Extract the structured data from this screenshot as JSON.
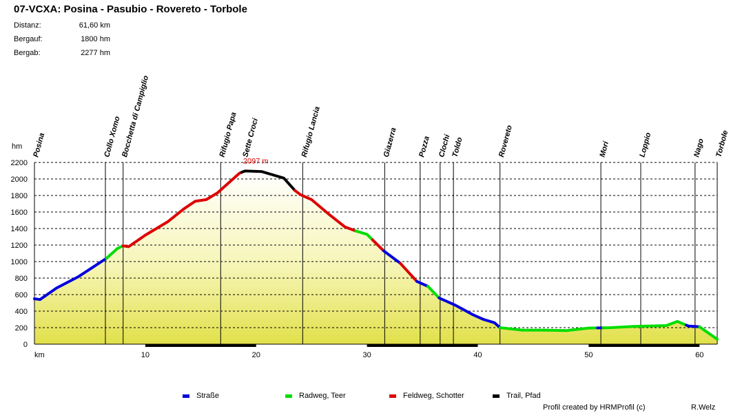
{
  "header": {
    "title": "07-VCXA: Posina - Pasubio - Rovereto - Torbole",
    "stats": [
      {
        "label": "Distanz:",
        "value": "61,60 km"
      },
      {
        "label": "Bergauf:",
        "value": "1800 hm"
      },
      {
        "label": "Bergab:",
        "value": "2277 hm"
      }
    ]
  },
  "colors": {
    "strasse": "#0000dd",
    "radweg": "#00dd00",
    "feldweg": "#dd0000",
    "trail": "#000000"
  },
  "chart_data": {
    "type": "area",
    "title": "07-VCXA: Posina - Pasubio - Rovereto - Torbole",
    "xlabel": "km",
    "ylabel": "hm",
    "xlim": [
      0,
      61.6
    ],
    "ylim": [
      0,
      2200
    ],
    "xticks": [
      10,
      20,
      30,
      40,
      50,
      60
    ],
    "yticks": [
      0,
      200,
      400,
      600,
      800,
      1000,
      1200,
      1400,
      1600,
      1800,
      2000,
      2200
    ],
    "grid": "dashed horizontal",
    "max_label": "2097 m",
    "max_point": {
      "x": 18.7,
      "y": 2097
    },
    "profile": [
      {
        "x": 0,
        "y": 550
      },
      {
        "x": 0.5,
        "y": 540
      },
      {
        "x": 2,
        "y": 680
      },
      {
        "x": 4,
        "y": 820
      },
      {
        "x": 6.5,
        "y": 1040
      },
      {
        "x": 7.5,
        "y": 1160
      },
      {
        "x": 8,
        "y": 1190
      },
      {
        "x": 8.5,
        "y": 1180
      },
      {
        "x": 10,
        "y": 1320
      },
      {
        "x": 12,
        "y": 1480
      },
      {
        "x": 13.5,
        "y": 1640
      },
      {
        "x": 14.5,
        "y": 1730
      },
      {
        "x": 15.5,
        "y": 1750
      },
      {
        "x": 16.5,
        "y": 1830
      },
      {
        "x": 17.5,
        "y": 1950
      },
      {
        "x": 18.5,
        "y": 2070
      },
      {
        "x": 19,
        "y": 2097
      },
      {
        "x": 20.5,
        "y": 2090
      },
      {
        "x": 21.5,
        "y": 2050
      },
      {
        "x": 22.5,
        "y": 2010
      },
      {
        "x": 23.5,
        "y": 1860
      },
      {
        "x": 24,
        "y": 1810
      },
      {
        "x": 25,
        "y": 1750
      },
      {
        "x": 26.5,
        "y": 1580
      },
      {
        "x": 28,
        "y": 1420
      },
      {
        "x": 29,
        "y": 1370
      },
      {
        "x": 30,
        "y": 1330
      },
      {
        "x": 31.5,
        "y": 1130
      },
      {
        "x": 33,
        "y": 980
      },
      {
        "x": 34.5,
        "y": 760
      },
      {
        "x": 35.5,
        "y": 700
      },
      {
        "x": 36.5,
        "y": 560
      },
      {
        "x": 38,
        "y": 470
      },
      {
        "x": 39.5,
        "y": 360
      },
      {
        "x": 40.5,
        "y": 300
      },
      {
        "x": 41.5,
        "y": 260
      },
      {
        "x": 42,
        "y": 200
      },
      {
        "x": 44,
        "y": 170
      },
      {
        "x": 46,
        "y": 170
      },
      {
        "x": 48,
        "y": 165
      },
      {
        "x": 50,
        "y": 195
      },
      {
        "x": 52,
        "y": 200
      },
      {
        "x": 54,
        "y": 215
      },
      {
        "x": 57,
        "y": 225
      },
      {
        "x": 58,
        "y": 275
      },
      {
        "x": 59,
        "y": 220
      },
      {
        "x": 60,
        "y": 210
      },
      {
        "x": 61.6,
        "y": 60
      }
    ],
    "segments": [
      {
        "from": 0,
        "to": 6.5,
        "surface": "strasse"
      },
      {
        "from": 6.5,
        "to": 8,
        "surface": "radweg"
      },
      {
        "from": 8,
        "to": 18.7,
        "surface": "feldweg"
      },
      {
        "from": 18.7,
        "to": 23.5,
        "surface": "trail"
      },
      {
        "from": 23.5,
        "to": 29,
        "surface": "feldweg"
      },
      {
        "from": 29,
        "to": 30.5,
        "surface": "radweg"
      },
      {
        "from": 30.5,
        "to": 31.5,
        "surface": "feldweg"
      },
      {
        "from": 31.5,
        "to": 33,
        "surface": "strasse"
      },
      {
        "from": 33,
        "to": 34.5,
        "surface": "feldweg"
      },
      {
        "from": 34.5,
        "to": 35.5,
        "surface": "strasse"
      },
      {
        "from": 35.5,
        "to": 36.5,
        "surface": "radweg"
      },
      {
        "from": 36.5,
        "to": 42,
        "surface": "strasse"
      },
      {
        "from": 42,
        "to": 50.8,
        "surface": "radweg"
      },
      {
        "from": 50.8,
        "to": 51.3,
        "surface": "strasse"
      },
      {
        "from": 51.3,
        "to": 58.8,
        "surface": "radweg"
      },
      {
        "from": 58.8,
        "to": 60,
        "surface": "strasse"
      },
      {
        "from": 60,
        "to": 61.6,
        "surface": "radweg"
      }
    ],
    "waypoints": [
      {
        "name": "Posina",
        "x": 0,
        "line": false
      },
      {
        "name": "Collo Xomo",
        "x": 6.4,
        "line": true
      },
      {
        "name": "Bocchetta di Campiglio",
        "x": 8.0,
        "line": true
      },
      {
        "name": "Rifugio Papa",
        "x": 16.8,
        "line": true
      },
      {
        "name": "Sette Croci",
        "x": 18.9,
        "line": false
      },
      {
        "name": "Rifugio Lancia",
        "x": 24.2,
        "line": true
      },
      {
        "name": "Giazerra",
        "x": 31.6,
        "line": true
      },
      {
        "name": "Pozza",
        "x": 34.8,
        "line": true
      },
      {
        "name": "Clochi",
        "x": 36.6,
        "line": true
      },
      {
        "name": "Toldo",
        "x": 37.8,
        "line": true
      },
      {
        "name": "Rovereto",
        "x": 42.0,
        "line": true
      },
      {
        "name": "Mori",
        "x": 51.1,
        "line": true
      },
      {
        "name": "Loppio",
        "x": 54.7,
        "line": true
      },
      {
        "name": "Nago",
        "x": 59.6,
        "line": true
      },
      {
        "name": "Torbole",
        "x": 61.6,
        "line": true
      }
    ]
  },
  "legend": [
    {
      "key": "strasse",
      "label": "Straße"
    },
    {
      "key": "radweg",
      "label": "Radweg, Teer"
    },
    {
      "key": "feldweg",
      "label": "Feldweg, Schotter"
    },
    {
      "key": "trail",
      "label": "Trail, Pfad"
    }
  ],
  "footer": {
    "credit": "Profil created by HRMProfil (c)",
    "author": "R.Welz"
  }
}
